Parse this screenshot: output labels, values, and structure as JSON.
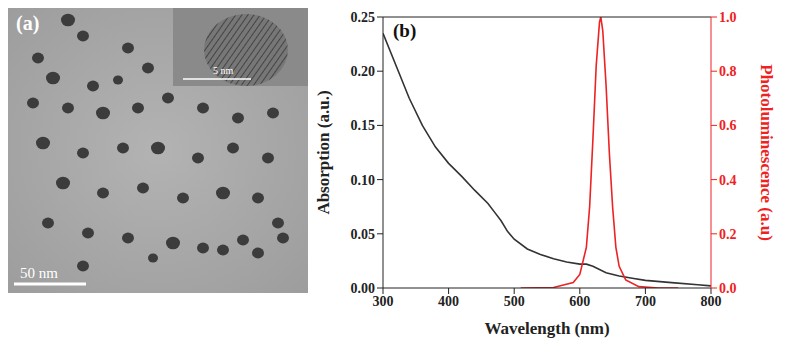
{
  "image_panel": {
    "label": "(a)",
    "scale_bar": "50 nm",
    "inset_scale_bar": "5 nm"
  },
  "chart_data": {
    "type": "line",
    "label": "(b)",
    "xlabel": "Wavelength (nm)",
    "ylabel": "Absorption (a.u.)",
    "y2label": "Photoluminescence (a.u)",
    "xlim": [
      300,
      800
    ],
    "xticks": [
      300,
      400,
      500,
      600,
      700,
      800
    ],
    "ylim": [
      0,
      0.25
    ],
    "yticks": [
      {
        "value": 0,
        "label": "0.00"
      },
      {
        "value": 0.05,
        "label": "0.05"
      },
      {
        "value": 0.1,
        "label": "0.10"
      },
      {
        "value": 0.15,
        "label": "0.15"
      },
      {
        "value": 0.2,
        "label": "0.20"
      },
      {
        "value": 0.25,
        "label": "0.25"
      }
    ],
    "y2lim": [
      0,
      1
    ],
    "y2ticks": [
      {
        "value": 0,
        "label": "0.0"
      },
      0.2,
      0.4,
      0.6,
      0.8,
      {
        "value": 1,
        "label": "1.0"
      }
    ],
    "series": [
      {
        "color": "#333333",
        "x": [
          300,
          320,
          340,
          360,
          380,
          400,
          420,
          440,
          460,
          470,
          480,
          490,
          500,
          520,
          540,
          560,
          580,
          600,
          610,
          620,
          640,
          660,
          680,
          700,
          740,
          780,
          800
        ],
        "values": [
          0.235,
          0.205,
          0.175,
          0.15,
          0.13,
          0.115,
          0.103,
          0.09,
          0.078,
          0.07,
          0.062,
          0.052,
          0.045,
          0.036,
          0.031,
          0.027,
          0.024,
          0.022,
          0.022,
          0.02,
          0.014,
          0.011,
          0.009,
          0.007,
          0.005,
          0.003,
          0.002
        ]
      },
      {
        "color": "#ee2222",
        "axis": "y2",
        "x": [
          510,
          560,
          590,
          600,
          610,
          615,
          620,
          625,
          630,
          632,
          635,
          640,
          645,
          650,
          655,
          660,
          670,
          690,
          720,
          750
        ],
        "values": [
          0,
          0.002,
          0.02,
          0.05,
          0.15,
          0.3,
          0.55,
          0.82,
          0.98,
          1,
          0.95,
          0.75,
          0.5,
          0.3,
          0.15,
          0.08,
          0.03,
          0.005,
          0,
          0
        ]
      }
    ]
  }
}
